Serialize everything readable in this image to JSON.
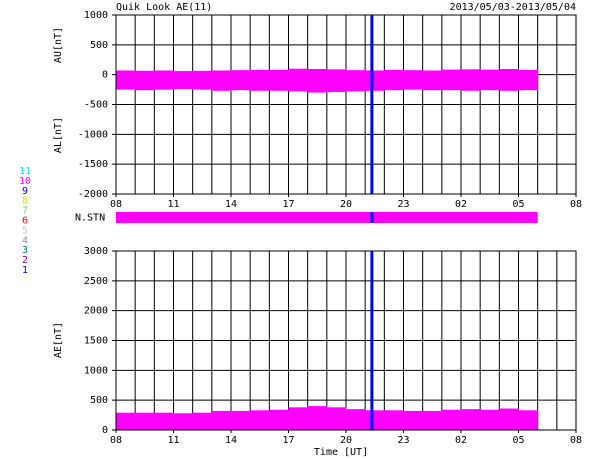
{
  "title": "Quik Look AE(11)",
  "date_range": "2013/05/03-2013/05/04",
  "flag": {
    "x": 21.35,
    "color": "#0000ff"
  },
  "station_legend": {
    "values": [
      "11",
      "10",
      "9",
      "8",
      "7",
      "6",
      "5",
      "4",
      "3",
      "2",
      "1"
    ],
    "colors": [
      "#00e5e5",
      "#ff00ff",
      "#0000c0",
      "#e5e500",
      "#66dd66",
      "#ff0000",
      "#c8c8c8",
      "#909090",
      "#008080",
      "#900090",
      "#0000ff"
    ]
  },
  "chart_data": [
    {
      "type": "band",
      "x": [
        8.5,
        9.5,
        10.5,
        11.5,
        12.5,
        13.5,
        14.5,
        15.5,
        16.5,
        17.5,
        18.5,
        19.5,
        20.5,
        21.5,
        22.5,
        23.5,
        24.5,
        25.5,
        26.5,
        27.5,
        28.5,
        29.5
      ],
      "series": [
        {
          "name": "AU[nT]",
          "color": "#ff00ff",
          "values": [
            70,
            65,
            70,
            60,
            65,
            70,
            75,
            80,
            80,
            100,
            95,
            90,
            75,
            70,
            80,
            75,
            70,
            85,
            90,
            85,
            95,
            80
          ]
        },
        {
          "name": "AL[nT]",
          "color": "#ff00ff",
          "values": [
            -250,
            -260,
            -250,
            -240,
            -250,
            -270,
            -260,
            -270,
            -270,
            -280,
            -300,
            -290,
            -280,
            -270,
            -260,
            -250,
            -260,
            -260,
            -270,
            -260,
            -270,
            -260
          ]
        }
      ],
      "xlim": [
        8,
        32
      ],
      "xticks": [
        {
          "value": 8,
          "label": "08"
        },
        {
          "value": 11,
          "label": "11"
        },
        {
          "value": 14,
          "label": "14"
        },
        {
          "value": 17,
          "label": "17"
        },
        20,
        23,
        {
          "value": 26,
          "label": "02"
        },
        {
          "value": 29,
          "label": "05"
        },
        {
          "value": 32,
          "label": "08"
        }
      ],
      "xgrid": [
        8,
        9,
        10,
        11,
        12,
        13,
        14,
        15,
        16,
        17,
        18,
        19,
        20,
        21,
        22,
        23,
        24,
        25,
        26,
        27,
        28,
        29,
        30,
        31,
        32
      ],
      "ylim": [
        -2000,
        1000
      ],
      "yticks": [
        -2000,
        -1500,
        -1000,
        -500,
        0,
        500,
        1000
      ]
    },
    {
      "type": "stations",
      "label": "N.STN",
      "segments": [
        {
          "start": 8,
          "end": 30,
          "stations": 10
        }
      ],
      "xlim": [
        8,
        32
      ]
    },
    {
      "type": "area",
      "xlabel": "Time [UT]",
      "x": [
        8.5,
        9.5,
        10.5,
        11.5,
        12.5,
        13.5,
        14.5,
        15.5,
        16.5,
        17.5,
        18.5,
        19.5,
        20.5,
        21.5,
        22.5,
        23.5,
        24.5,
        25.5,
        26.5,
        27.5,
        28.5,
        29.5
      ],
      "series": [
        {
          "name": "AE[nT]",
          "color": "#ff00ff",
          "values": [
            290,
            290,
            290,
            280,
            290,
            320,
            320,
            330,
            340,
            380,
            400,
            380,
            350,
            330,
            330,
            320,
            320,
            340,
            350,
            340,
            360,
            330
          ]
        }
      ],
      "xlim": [
        8,
        32
      ],
      "xticks": [
        {
          "value": 8,
          "label": "08"
        },
        {
          "value": 11,
          "label": "11"
        },
        {
          "value": 14,
          "label": "14"
        },
        {
          "value": 17,
          "label": "17"
        },
        20,
        23,
        {
          "value": 26,
          "label": "02"
        },
        {
          "value": 29,
          "label": "05"
        },
        {
          "value": 32,
          "label": "08"
        }
      ],
      "xgrid": [
        8,
        9,
        10,
        11,
        12,
        13,
        14,
        15,
        16,
        17,
        18,
        19,
        20,
        21,
        22,
        23,
        24,
        25,
        26,
        27,
        28,
        29,
        30,
        31,
        32
      ],
      "ylim": [
        0,
        3000
      ],
      "yticks": [
        0,
        500,
        1000,
        1500,
        2000,
        2500,
        3000
      ]
    }
  ]
}
